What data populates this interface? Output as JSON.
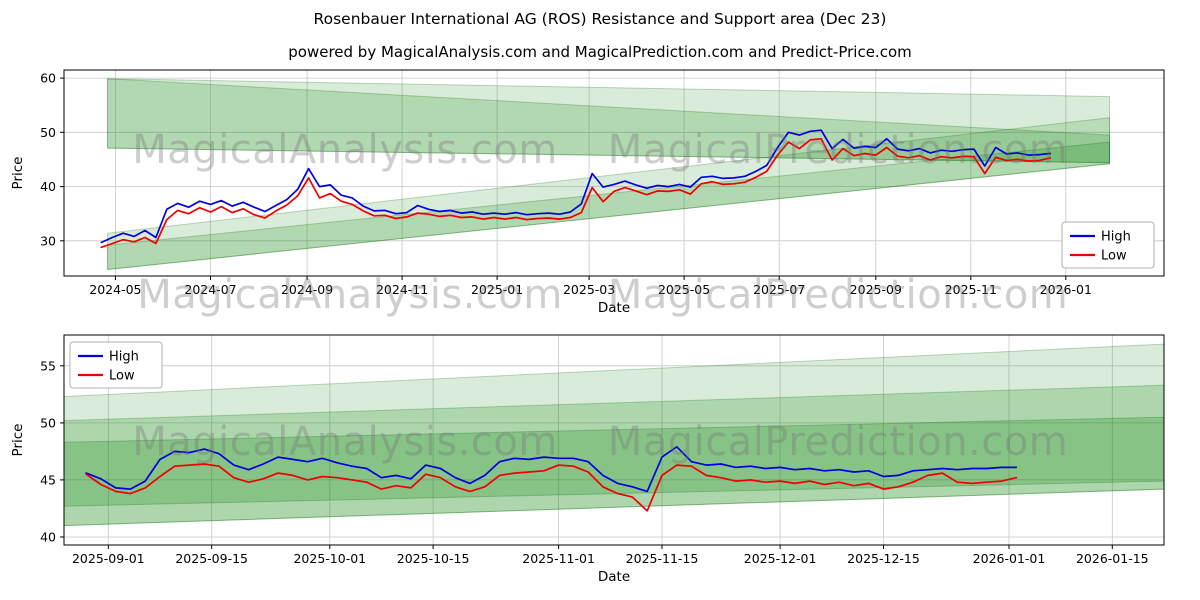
{
  "title": "Rosenbauer International AG (ROS) Resistance and Support area (Dec 23)",
  "subtitle": "powered by MagicalAnalysis.com and MagicalPrediction.com and Predict-Price.com",
  "watermarks": [
    "MagicalAnalysis.com",
    "MagicalPrediction.com"
  ],
  "colors": {
    "high": "#0000dd",
    "low": "#ee0000",
    "band": "#008000",
    "band_edge": "rgba(0,100,0,0.25)",
    "grid": "#c8c8c8",
    "spine": "#000000"
  },
  "chart_data": [
    {
      "type": "line",
      "name": "full-history",
      "xlabel": "Date",
      "ylabel": "Price",
      "x_domain": [
        "2024-03-29",
        "2026-03-05"
      ],
      "y_domain": [
        23.5,
        61.5
      ],
      "grid": true,
      "x_ticks": [
        {
          "date": "2024-05-01",
          "label": "2024-05"
        },
        {
          "date": "2024-07-01",
          "label": "2024-07"
        },
        {
          "date": "2024-09-01",
          "label": "2024-09"
        },
        {
          "date": "2024-11-01",
          "label": "2024-11"
        },
        {
          "date": "2025-01-01",
          "label": "2025-01"
        },
        {
          "date": "2025-03-01",
          "label": "2025-03"
        },
        {
          "date": "2025-05-01",
          "label": "2025-05"
        },
        {
          "date": "2025-07-01",
          "label": "2025-07"
        },
        {
          "date": "2025-09-01",
          "label": "2025-09"
        },
        {
          "date": "2025-11-01",
          "label": "2025-11"
        },
        {
          "date": "2026-01-01",
          "label": "2026-01"
        }
      ],
      "y_ticks": [
        30,
        40,
        50,
        60
      ],
      "legend": {
        "position": "lower-right",
        "entries": [
          {
            "label": "High",
            "color": "#0000dd"
          },
          {
            "label": "Low",
            "color": "#ee0000"
          }
        ]
      },
      "bands": [
        {
          "x": [
            "2024-04-26",
            "2026-01-29"
          ],
          "top": [
            59.9,
            56.6
          ],
          "bottom": [
            47.1,
            44.4
          ],
          "alpha": 0.15
        },
        {
          "x": [
            "2024-04-26",
            "2026-01-29"
          ],
          "top": [
            59.9,
            49.5
          ],
          "bottom": [
            47.1,
            44.4
          ],
          "alpha": 0.18
        },
        {
          "x": [
            "2024-04-26",
            "2026-01-29"
          ],
          "top": [
            31.4,
            52.7
          ],
          "bottom": [
            24.7,
            44.2
          ],
          "alpha": 0.15
        },
        {
          "x": [
            "2024-04-26",
            "2026-01-29"
          ],
          "top": [
            29.2,
            48.2
          ],
          "bottom": [
            24.7,
            44.2
          ],
          "alpha": 0.18
        }
      ],
      "series": [
        {
          "name": "High",
          "color": "#0000dd",
          "start": "2024-04-22",
          "step_days": 7,
          "values": [
            29.7,
            30.6,
            31.4,
            30.8,
            31.9,
            30.6,
            35.8,
            36.9,
            36.2,
            37.3,
            36.7,
            37.4,
            36.4,
            37.1,
            36.2,
            35.4,
            36.5,
            37.6,
            39.5,
            43.3,
            40.0,
            40.3,
            38.4,
            37.9,
            36.4,
            35.5,
            35.6,
            35.0,
            35.2,
            36.5,
            35.8,
            35.4,
            35.6,
            35.1,
            35.3,
            34.9,
            35.1,
            34.9,
            35.2,
            34.8,
            35.0,
            35.1,
            34.9,
            35.3,
            36.8,
            42.4,
            39.9,
            40.4,
            41.0,
            40.3,
            39.7,
            40.2,
            40.0,
            40.4,
            39.9,
            41.7,
            41.9,
            41.5,
            41.6,
            41.9,
            42.8,
            43.9,
            47.2,
            50.0,
            49.5,
            50.2,
            50.4,
            47.0,
            48.7,
            47.1,
            47.4,
            47.2,
            48.8,
            46.9,
            46.6,
            47.0,
            46.2,
            46.7,
            46.5,
            46.8,
            46.9,
            43.8,
            47.2,
            46.0,
            46.2,
            45.8,
            45.9,
            46.1
          ]
        },
        {
          "name": "Low",
          "color": "#ee0000",
          "start": "2024-04-22",
          "step_days": 7,
          "values": [
            28.8,
            29.5,
            30.2,
            29.8,
            30.6,
            29.5,
            33.9,
            35.6,
            35.0,
            36.1,
            35.3,
            36.3,
            35.2,
            35.9,
            34.8,
            34.2,
            35.5,
            36.6,
            38.3,
            41.6,
            37.9,
            38.7,
            37.3,
            36.7,
            35.5,
            34.6,
            34.7,
            34.1,
            34.4,
            35.1,
            34.9,
            34.5,
            34.7,
            34.3,
            34.4,
            34.0,
            34.3,
            34.0,
            34.3,
            33.9,
            34.1,
            34.2,
            34.0,
            34.3,
            35.2,
            39.8,
            37.2,
            39.1,
            39.8,
            39.2,
            38.5,
            39.2,
            39.1,
            39.4,
            38.6,
            40.5,
            40.9,
            40.4,
            40.5,
            40.8,
            41.7,
            42.8,
            45.8,
            48.2,
            47.0,
            48.6,
            48.8,
            44.9,
            47.0,
            45.7,
            46.1,
            45.8,
            47.2,
            45.6,
            45.3,
            45.7,
            44.9,
            45.5,
            45.3,
            45.6,
            45.5,
            42.4,
            45.4,
            44.8,
            45.0,
            44.7,
            44.8,
            45.3
          ]
        }
      ]
    },
    {
      "type": "line",
      "name": "recent-zoom",
      "xlabel": "Date",
      "ylabel": "Price",
      "x_domain": [
        "2025-08-26",
        "2026-01-22"
      ],
      "y_domain": [
        39.3,
        57.7
      ],
      "grid": true,
      "x_ticks": [
        {
          "date": "2025-09-01",
          "label": "2025-09-01"
        },
        {
          "date": "2025-09-15",
          "label": "2025-09-15"
        },
        {
          "date": "2025-10-01",
          "label": "2025-10-01"
        },
        {
          "date": "2025-10-15",
          "label": "2025-10-15"
        },
        {
          "date": "2025-11-01",
          "label": "2025-11-01"
        },
        {
          "date": "2025-11-15",
          "label": "2025-11-15"
        },
        {
          "date": "2025-12-01",
          "label": "2025-12-01"
        },
        {
          "date": "2025-12-15",
          "label": "2025-12-15"
        },
        {
          "date": "2026-01-01",
          "label": "2026-01-01"
        },
        {
          "date": "2026-01-15",
          "label": "2026-01-15"
        }
      ],
      "y_ticks": [
        40,
        45,
        50,
        55
      ],
      "legend": {
        "position": "upper-left",
        "entries": [
          {
            "label": "High",
            "color": "#0000dd"
          },
          {
            "label": "Low",
            "color": "#ee0000"
          }
        ]
      },
      "bands": [
        {
          "x": [
            "2025-08-26",
            "2026-01-22"
          ],
          "top": [
            52.3,
            56.9
          ],
          "bottom": [
            41.0,
            44.2
          ],
          "alpha": 0.15
        },
        {
          "x": [
            "2025-08-26",
            "2026-01-22"
          ],
          "top": [
            50.2,
            53.3
          ],
          "bottom": [
            41.0,
            44.2
          ],
          "alpha": 0.2
        },
        {
          "x": [
            "2025-08-26",
            "2026-01-22"
          ],
          "top": [
            48.3,
            50.5
          ],
          "bottom": [
            42.7,
            44.9
          ],
          "alpha": 0.22
        }
      ],
      "series": [
        {
          "name": "High",
          "color": "#0000dd",
          "start": "2025-08-29",
          "step_days": 2,
          "values": [
            45.6,
            45.1,
            44.3,
            44.2,
            44.9,
            46.8,
            47.5,
            47.4,
            47.7,
            47.3,
            46.3,
            45.9,
            46.4,
            47.0,
            46.8,
            46.6,
            46.9,
            46.5,
            46.2,
            46.0,
            45.2,
            45.4,
            45.1,
            46.3,
            46.0,
            45.2,
            44.7,
            45.4,
            46.6,
            46.9,
            46.8,
            47.0,
            46.9,
            46.9,
            46.6,
            45.4,
            44.7,
            44.4,
            44.0,
            47.0,
            47.9,
            46.6,
            46.3,
            46.4,
            46.1,
            46.2,
            46.0,
            46.1,
            45.9,
            46.0,
            45.8,
            45.9,
            45.7,
            45.8,
            45.3,
            45.4,
            45.8,
            45.9,
            46.0,
            45.9,
            46.0,
            46.0,
            46.1,
            46.1
          ]
        },
        {
          "name": "Low",
          "color": "#ee0000",
          "start": "2025-08-29",
          "step_days": 2,
          "values": [
            45.5,
            44.6,
            44.0,
            43.8,
            44.3,
            45.3,
            46.2,
            46.3,
            46.4,
            46.2,
            45.2,
            44.8,
            45.1,
            45.6,
            45.4,
            45.0,
            45.3,
            45.2,
            45.0,
            44.8,
            44.2,
            44.5,
            44.3,
            45.5,
            45.2,
            44.4,
            44.0,
            44.4,
            45.4,
            45.6,
            45.7,
            45.8,
            46.3,
            46.2,
            45.7,
            44.4,
            43.8,
            43.5,
            42.3,
            45.4,
            46.3,
            46.2,
            45.4,
            45.2,
            44.9,
            45.0,
            44.8,
            44.9,
            44.7,
            44.9,
            44.6,
            44.8,
            44.5,
            44.7,
            44.2,
            44.4,
            44.8,
            45.4,
            45.6,
            44.8,
            44.7,
            44.8,
            44.9,
            45.2
          ]
        }
      ]
    }
  ]
}
